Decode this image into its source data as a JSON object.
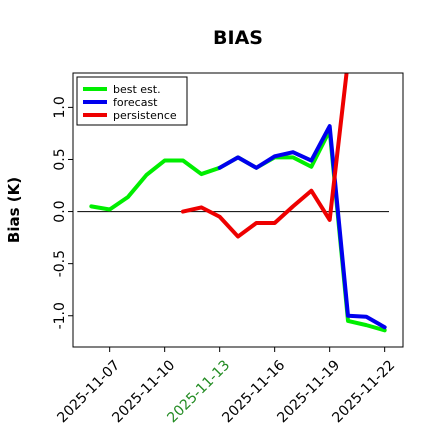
{
  "chart_data": {
    "type": "line",
    "title": "BIAS",
    "ylabel": "Bias (K)",
    "xlabel": "",
    "ylim": [
      -1.3,
      1.33
    ],
    "xlim": [
      "2025-11-05",
      "2025-11-23"
    ],
    "xticks": [
      "2025-11-07",
      "2025-11-10",
      "2025-11-13",
      "2025-11-16",
      "2025-11-19",
      "2025-11-22"
    ],
    "xtick_colors": [
      "#000000",
      "#000000",
      "#228B22",
      "#000000",
      "#000000",
      "#000000"
    ],
    "yticks": [
      -1.0,
      -0.5,
      0.0,
      0.5,
      1.0
    ],
    "ytick_labels": [
      "-1.0",
      "-0.5",
      "0.0",
      "0.5",
      "1.0"
    ],
    "zero_line": 0,
    "grid": false,
    "legend_position": "top-left",
    "series": [
      {
        "name": "best est.",
        "color": "#00ee00",
        "x": [
          "2025-11-06",
          "2025-11-07",
          "2025-11-08",
          "2025-11-09",
          "2025-11-10",
          "2025-11-11",
          "2025-11-12",
          "2025-11-13",
          "2025-11-14",
          "2025-11-15",
          "2025-11-16",
          "2025-11-17",
          "2025-11-18",
          "2025-11-19",
          "2025-11-20",
          "2025-11-21",
          "2025-11-22"
        ],
        "values": [
          0.05,
          0.02,
          0.14,
          0.35,
          0.49,
          0.49,
          0.36,
          0.42,
          0.52,
          0.42,
          0.52,
          0.52,
          0.43,
          0.78,
          -1.05,
          -1.09,
          -1.14
        ]
      },
      {
        "name": "forecast",
        "color": "#0000ee",
        "x": [
          "2025-11-13",
          "2025-11-14",
          "2025-11-15",
          "2025-11-16",
          "2025-11-17",
          "2025-11-18",
          "2025-11-19",
          "2025-11-20",
          "2025-11-21",
          "2025-11-22"
        ],
        "values": [
          0.42,
          0.52,
          0.42,
          0.53,
          0.57,
          0.49,
          0.82,
          -1.0,
          -1.01,
          -1.11
        ]
      },
      {
        "name": "persistence",
        "color": "#ee0000",
        "x": [
          "2025-11-11",
          "2025-11-12",
          "2025-11-13",
          "2025-11-14",
          "2025-11-15",
          "2025-11-16",
          "2025-11-17",
          "2025-11-18",
          "2025-11-19",
          "2025-11-20"
        ],
        "values": [
          0.0,
          0.04,
          -0.05,
          -0.24,
          -0.11,
          -0.11,
          0.05,
          0.2,
          -0.08,
          1.45
        ]
      }
    ]
  }
}
